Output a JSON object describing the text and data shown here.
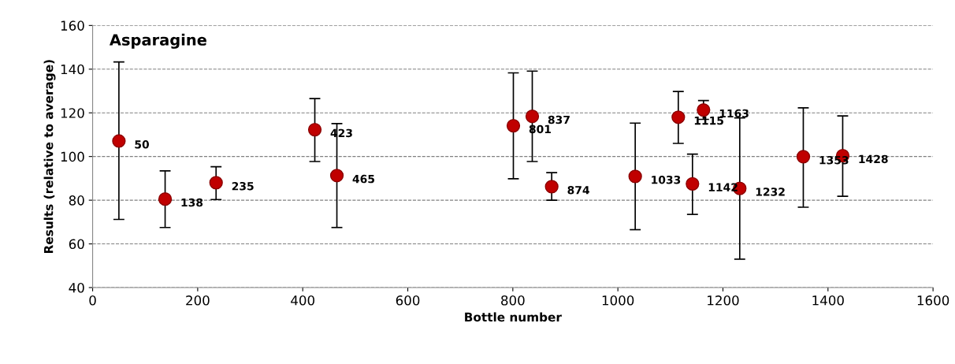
{
  "chart_data": {
    "type": "scatter",
    "title": "Asparagine",
    "xlabel": "Bottle number",
    "ylabel": "Results (relative to average)",
    "x": [
      50,
      138,
      235,
      423,
      465,
      801,
      837,
      874,
      1033,
      1115,
      1142,
      1163,
      1232,
      1353,
      1428
    ],
    "values": [
      107.1,
      80.5,
      88.0,
      112.3,
      91.3,
      114.1,
      118.4,
      86.2,
      90.9,
      118.0,
      87.5,
      121.3,
      85.4,
      99.9,
      100.4
    ],
    "errors": [
      [
        71.2,
        143.3
      ],
      [
        67.5,
        93.4
      ],
      [
        80.3,
        95.3
      ],
      [
        97.7,
        126.5
      ],
      [
        67.5,
        115.1
      ],
      [
        89.8,
        138.3
      ],
      [
        97.7,
        139.1
      ],
      [
        80.0,
        92.6
      ],
      [
        66.5,
        115.3
      ],
      [
        106.0,
        129.8
      ],
      [
        73.5,
        101.1
      ],
      [
        117.0,
        125.6
      ],
      [
        53.0,
        117.7
      ],
      [
        76.8,
        122.3
      ],
      [
        81.8,
        118.6
      ]
    ],
    "annotations": [
      {
        "text": "50",
        "x": 50,
        "y": 107.1
      },
      {
        "text": "138",
        "x": 138,
        "y": 80.5
      },
      {
        "text": "235",
        "x": 235,
        "y": 88.0
      },
      {
        "text": "423",
        "x": 423,
        "y": 112.3
      },
      {
        "text": "465",
        "x": 465,
        "y": 91.3
      },
      {
        "text": "801",
        "x": 801,
        "y": 114.1
      },
      {
        "text": "837",
        "x": 837,
        "y": 118.4
      },
      {
        "text": "874",
        "x": 874,
        "y": 86.2
      },
      {
        "text": "1033",
        "x": 1033,
        "y": 90.9
      },
      {
        "text": "1115",
        "x": 1115,
        "y": 118.0
      },
      {
        "text": "1142",
        "x": 1142,
        "y": 87.5
      },
      {
        "text": "1163",
        "x": 1163,
        "y": 121.3
      },
      {
        "text": "1232",
        "x": 1232,
        "y": 85.4
      },
      {
        "text": "1353",
        "x": 1353,
        "y": 99.9
      },
      {
        "text": "1428",
        "x": 1428,
        "y": 100.4
      }
    ],
    "color": "#c00000",
    "marker": "circle",
    "xlim": [
      0,
      1600
    ],
    "xticks": [
      0,
      200,
      400,
      600,
      800,
      1000,
      1200,
      1400,
      1600
    ],
    "ylim": [
      40,
      160
    ],
    "yticks": [
      40,
      60,
      80,
      100,
      120,
      140,
      160
    ],
    "grid": "y",
    "legend": false
  }
}
